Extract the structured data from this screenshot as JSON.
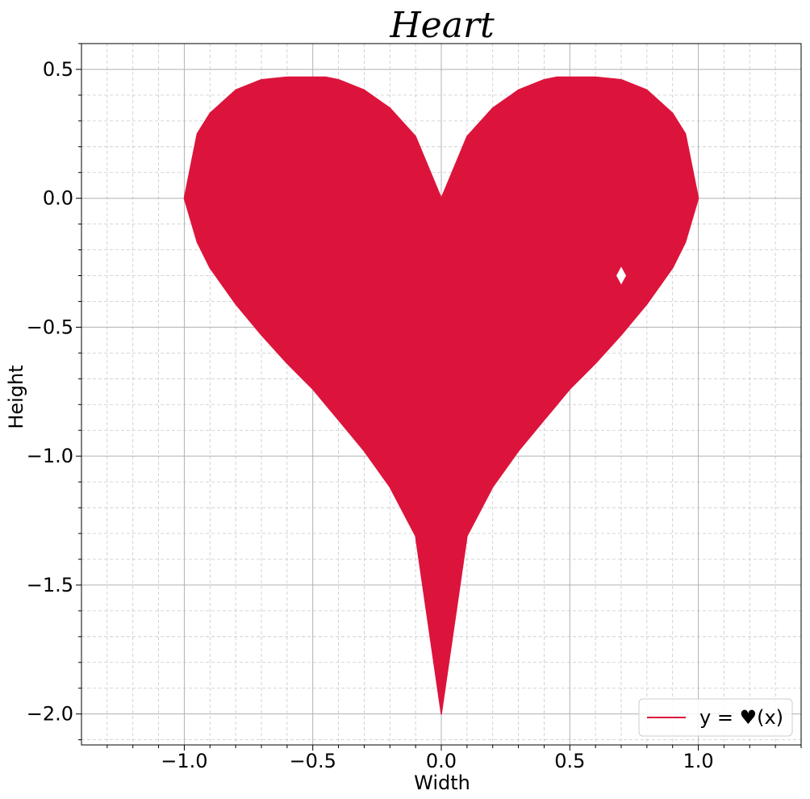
{
  "chart_data": {
    "type": "area",
    "title": "Heart",
    "xlabel": "Width",
    "ylabel": "Height",
    "xlim": [
      -1.4,
      1.4
    ],
    "ylim": [
      -2.12,
      0.6
    ],
    "x_major_ticks": [
      -1.0,
      -0.5,
      0.0,
      0.5,
      1.0
    ],
    "x_tick_labels": [
      "−1.0",
      "−0.5",
      "0.0",
      "0.5",
      "1.0"
    ],
    "y_major_ticks": [
      0.5,
      0.0,
      -0.5,
      -1.0,
      -1.5,
      -2.0
    ],
    "y_tick_labels": [
      "0.5",
      "0.0",
      "−0.5",
      "−1.0",
      "−1.5",
      "−2.0"
    ],
    "x_minor_step": 0.1,
    "y_minor_step": 0.1,
    "grid": "major and minor",
    "legend_position": "lower right",
    "series": [
      {
        "name": "y = ♥(x)",
        "color": "#DC143C",
        "x": [
          -1.0,
          -0.95,
          -0.9,
          -0.8,
          -0.7,
          -0.6,
          -0.5,
          -0.45,
          -0.4,
          -0.3,
          -0.2,
          -0.1,
          0.0,
          0.1,
          0.2,
          0.3,
          0.4,
          0.45,
          0.5,
          0.6,
          0.7,
          0.8,
          0.9,
          0.95,
          1.0
        ],
        "y_upper": [
          0.0,
          0.25,
          0.33,
          0.42,
          0.46,
          0.47,
          0.47,
          0.47,
          0.46,
          0.42,
          0.35,
          0.24,
          0.0,
          0.24,
          0.35,
          0.42,
          0.46,
          0.47,
          0.47,
          0.47,
          0.46,
          0.42,
          0.33,
          0.25,
          0.0
        ],
        "y_lower": [
          0.0,
          -0.17,
          -0.27,
          -0.41,
          -0.53,
          -0.64,
          -0.74,
          -0.8,
          -0.86,
          -0.98,
          -1.12,
          -1.31,
          -2.0,
          -1.31,
          -1.12,
          -0.98,
          -0.86,
          -0.8,
          -0.74,
          -0.64,
          -0.53,
          -0.41,
          -0.27,
          -0.17,
          0.0
        ]
      }
    ],
    "annotations": [
      {
        "type": "diamond-marker",
        "color": "#FFFFFF",
        "x": 0.7,
        "y": -0.3
      }
    ]
  }
}
